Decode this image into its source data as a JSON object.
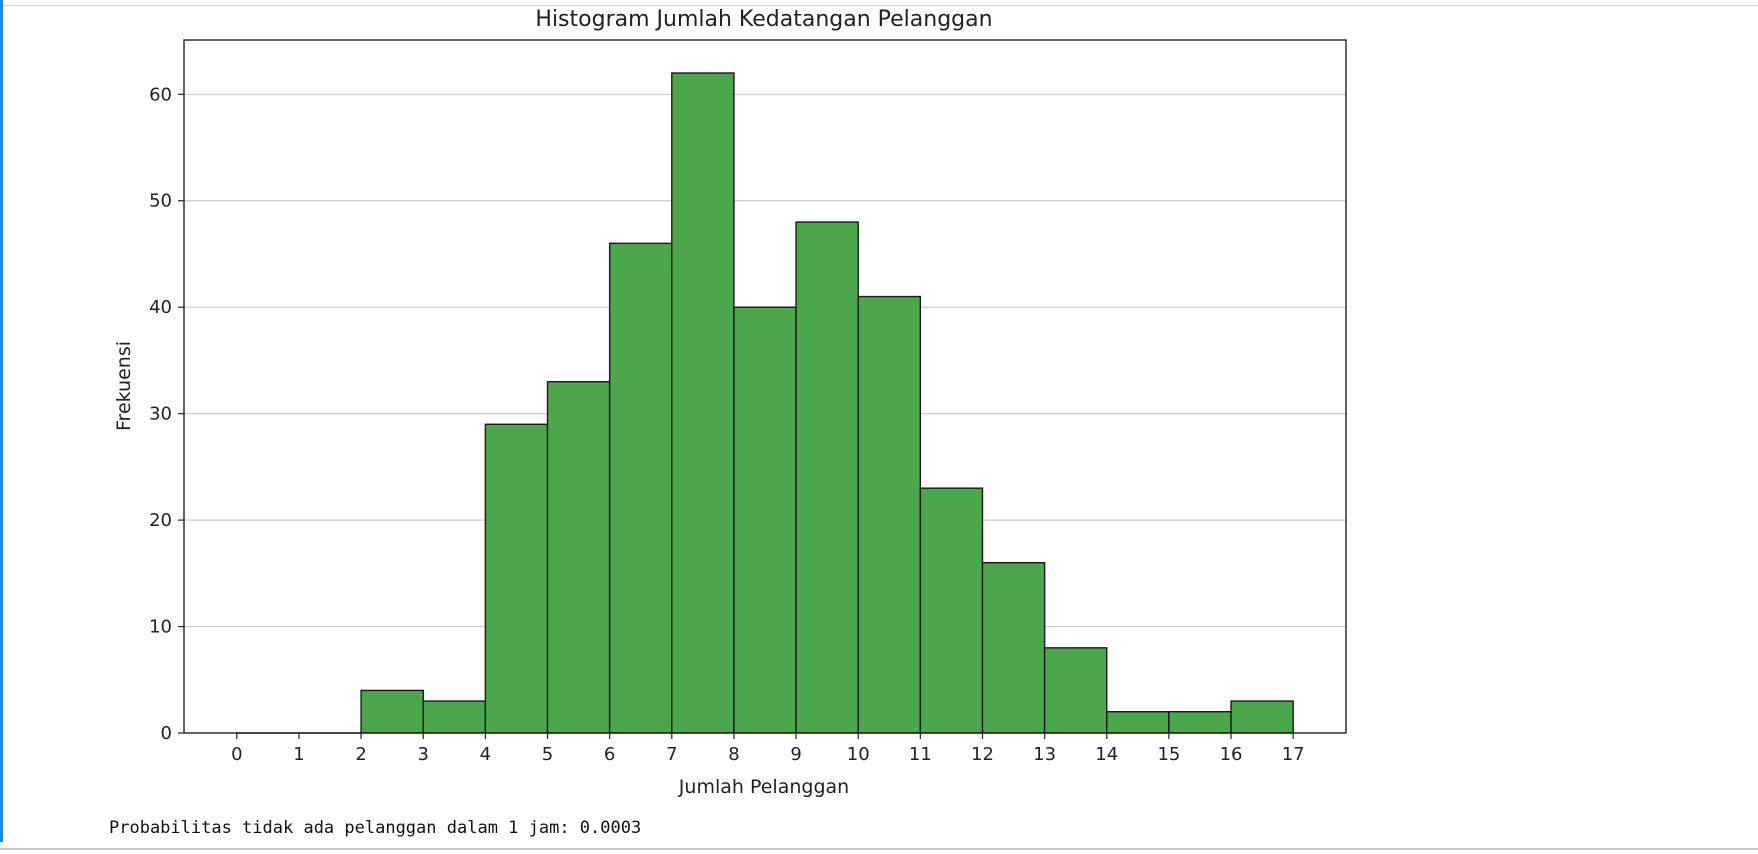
{
  "output": {
    "text": "Probabilitas tidak ada pelanggan dalam 1 jam: 0.0003"
  },
  "colors": {
    "bar_fill": "#4ca64c",
    "bar_edge": "#1a1a1a",
    "grid": "#cccccc",
    "cell_accent": "#1e88e5"
  },
  "chart_data": {
    "type": "bar",
    "title": "Histogram Jumlah Kedatangan Pelanggan",
    "xlabel": "Jumlah Pelanggan",
    "ylabel": "Frekuensi",
    "bin_edges": [
      0,
      1,
      2,
      3,
      4,
      5,
      6,
      7,
      8,
      9,
      10,
      11,
      12,
      13,
      14,
      15,
      16,
      17
    ],
    "values": [
      0,
      0,
      4,
      3,
      29,
      33,
      46,
      62,
      40,
      48,
      41,
      23,
      16,
      8,
      2,
      2,
      3
    ],
    "x_ticks": [
      "0",
      "1",
      "2",
      "3",
      "4",
      "5",
      "6",
      "7",
      "8",
      "9",
      "10",
      "11",
      "12",
      "13",
      "14",
      "15",
      "16",
      "17"
    ],
    "y_ticks": [
      "0",
      "10",
      "20",
      "30",
      "40",
      "50",
      "60"
    ],
    "xlim": [
      -0.85,
      17.85
    ],
    "ylim": [
      0,
      65.1
    ],
    "grid": "y-axis only",
    "legend": "none"
  }
}
